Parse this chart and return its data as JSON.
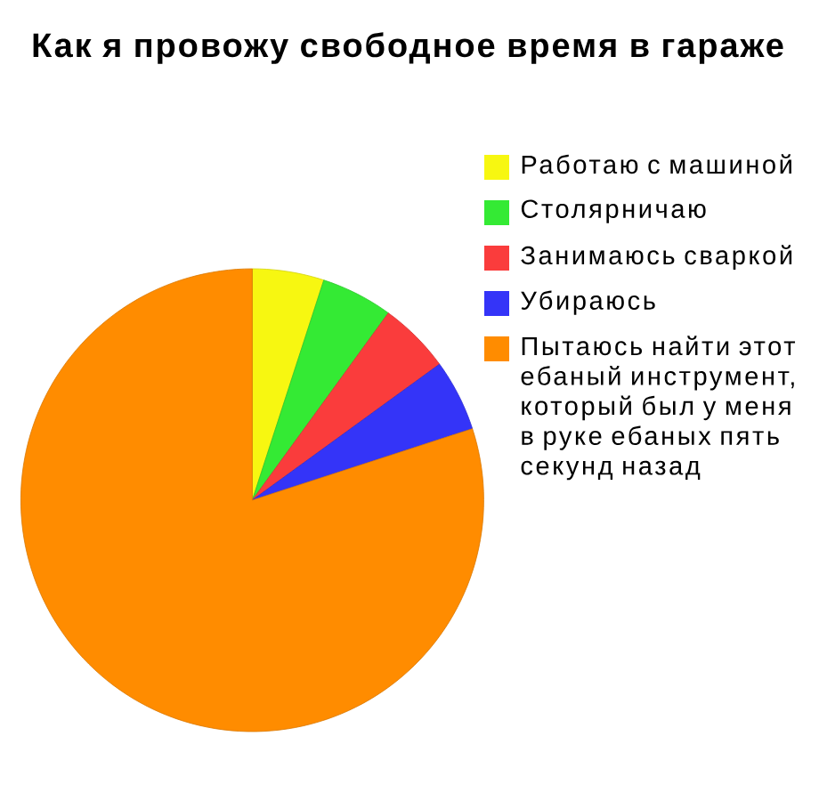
{
  "chart_data": {
    "type": "pie",
    "title": "Как я провожу свободное время в гараже",
    "categories": [
      "Работаю с машиной",
      "Столярничаю",
      "Занимаюсь сваркой",
      "Убираюсь",
      "Пытаюсь найти этот ебаный инструмент, который был у меня в руке ебаных пять секунд назад"
    ],
    "values": [
      5,
      5,
      5,
      5,
      80
    ],
    "colors": [
      "#f7f711",
      "#34ea34",
      "#fa3c3c",
      "#3434f8",
      "#ff8c00"
    ],
    "legend": "top right"
  }
}
